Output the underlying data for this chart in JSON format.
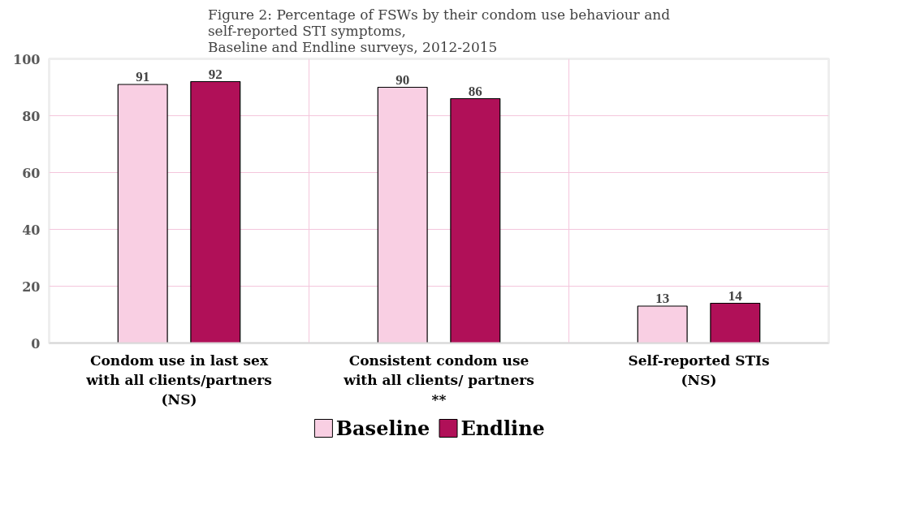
{
  "chart_data": {
    "type": "bar",
    "title": "Figure 2: Percentage of FSWs by their condom use behaviour and\nself-reported STI symptoms,\nBaseline and Endline surveys, 2012-2015",
    "categories": [
      "Condom use in last sex\nwith all clients/partners\n(NS)",
      "Consistent condom use\nwith all clients/ partners\n**",
      "Self-reported STIs\n(NS)"
    ],
    "series": [
      {
        "name": "Baseline",
        "color": "#f9cfe3",
        "values": [
          91,
          90,
          13
        ]
      },
      {
        "name": "Endline",
        "color": "#b01058",
        "values": [
          92,
          86,
          14
        ]
      }
    ],
    "ylim": [
      0,
      100
    ],
    "yticks": [
      0,
      20,
      40,
      60,
      80,
      100
    ],
    "grid": true,
    "legend": "bottom",
    "data_labels": true
  }
}
